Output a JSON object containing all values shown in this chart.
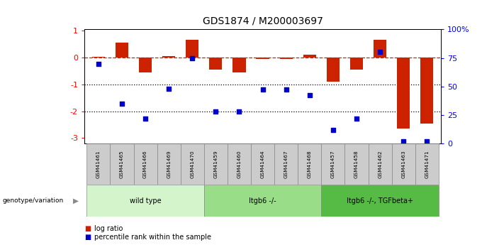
{
  "title": "GDS1874 / M200003697",
  "samples": [
    "GSM41461",
    "GSM41465",
    "GSM41466",
    "GSM41469",
    "GSM41470",
    "GSM41459",
    "GSM41460",
    "GSM41464",
    "GSM41467",
    "GSM41468",
    "GSM41457",
    "GSM41458",
    "GSM41462",
    "GSM41463",
    "GSM41471"
  ],
  "log_ratio": [
    0.02,
    0.55,
    -0.55,
    0.05,
    0.65,
    -0.45,
    -0.55,
    -0.05,
    -0.05,
    0.12,
    -0.9,
    -0.45,
    0.65,
    -2.65,
    -2.45
  ],
  "percentile_rank": [
    70,
    35,
    22,
    48,
    75,
    28,
    28,
    47,
    47,
    42,
    12,
    22,
    80,
    2,
    2
  ],
  "groups": [
    {
      "label": "wild type",
      "start": 0,
      "end": 4,
      "color": "#d4f5cc"
    },
    {
      "label": "Itgb6 -/-",
      "start": 5,
      "end": 9,
      "color": "#99dd88"
    },
    {
      "label": "Itgb6 -/-, TGFbeta+",
      "start": 10,
      "end": 14,
      "color": "#55bb44"
    }
  ],
  "bar_color": "#cc2200",
  "dot_color": "#0000cc",
  "ylim": [
    -3.2,
    1.05
  ],
  "y2lim": [
    0,
    100
  ],
  "yticks": [
    1,
    0,
    -1,
    -2,
    -3
  ],
  "y2ticks": [
    100,
    75,
    50,
    25,
    0
  ],
  "y2ticklabels": [
    "100%",
    "75",
    "50",
    "25",
    "0"
  ],
  "hline_y": 0,
  "dotted_lines": [
    -1,
    -2
  ],
  "background_color": "#ffffff",
  "label_box_color": "#cccccc",
  "legend_items": [
    {
      "label": "log ratio",
      "color": "#cc2200"
    },
    {
      "label": "percentile rank within the sample",
      "color": "#0000cc"
    }
  ]
}
